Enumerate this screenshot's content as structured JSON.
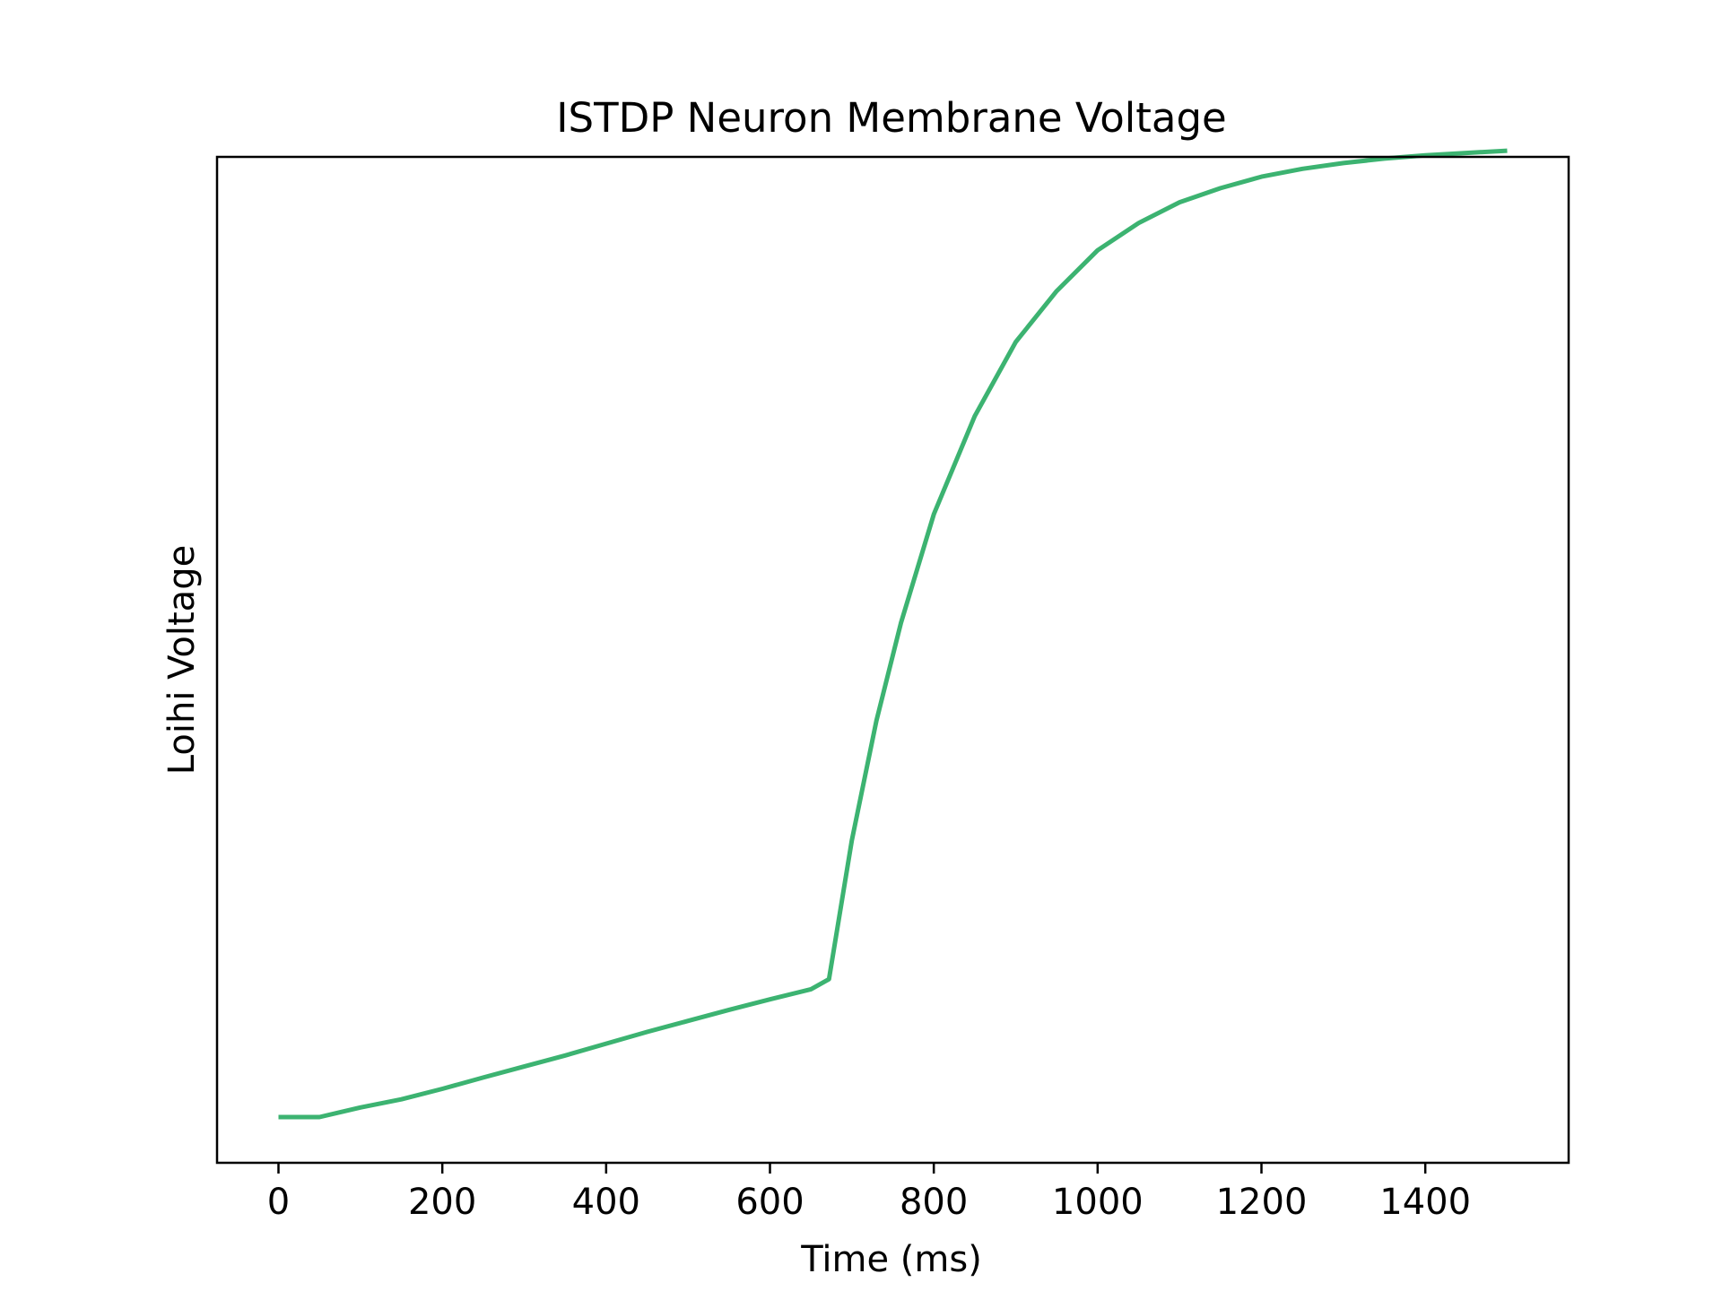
{
  "chart_data": {
    "type": "line",
    "title": "ISTDP Neuron Membrane Voltage",
    "xlabel": "Time (ms)",
    "ylabel": "Loihi Voltage",
    "xlim": [
      -75,
      1575
    ],
    "ylim": [
      -0.05,
      1.05
    ],
    "xticks": [
      0,
      200,
      400,
      600,
      800,
      1000,
      1200,
      1400
    ],
    "xtick_labels": [
      "0",
      "200",
      "400",
      "600",
      "800",
      "1000",
      "1200",
      "1400"
    ],
    "yticks_visible": false,
    "grid": false,
    "legend": "none",
    "line_color": "#3cb371",
    "series": [
      {
        "x": [
          0,
          50,
          100,
          150,
          200,
          250,
          300,
          350,
          400,
          450,
          500,
          550,
          600,
          650,
          672,
          700,
          730,
          760,
          800,
          850,
          900,
          950,
          1000,
          1050,
          1100,
          1150,
          1200,
          1250,
          1300,
          1350,
          1400,
          1450,
          1500
        ],
        "y": [
          0.0,
          0.0,
          0.0105,
          0.0194,
          0.0309,
          0.0432,
          0.0553,
          0.0674,
          0.0803,
          0.0931,
          0.1052,
          0.1173,
          0.1287,
          0.1398,
          0.1508,
          0.3027,
          0.4334,
          0.5406,
          0.6592,
          0.7665,
          0.8475,
          0.9033,
          0.9478,
          0.9776,
          1.0004,
          1.0158,
          1.0283,
          1.037,
          1.0432,
          1.0481,
          1.0518,
          1.0543,
          1.0568
        ]
      }
    ]
  }
}
